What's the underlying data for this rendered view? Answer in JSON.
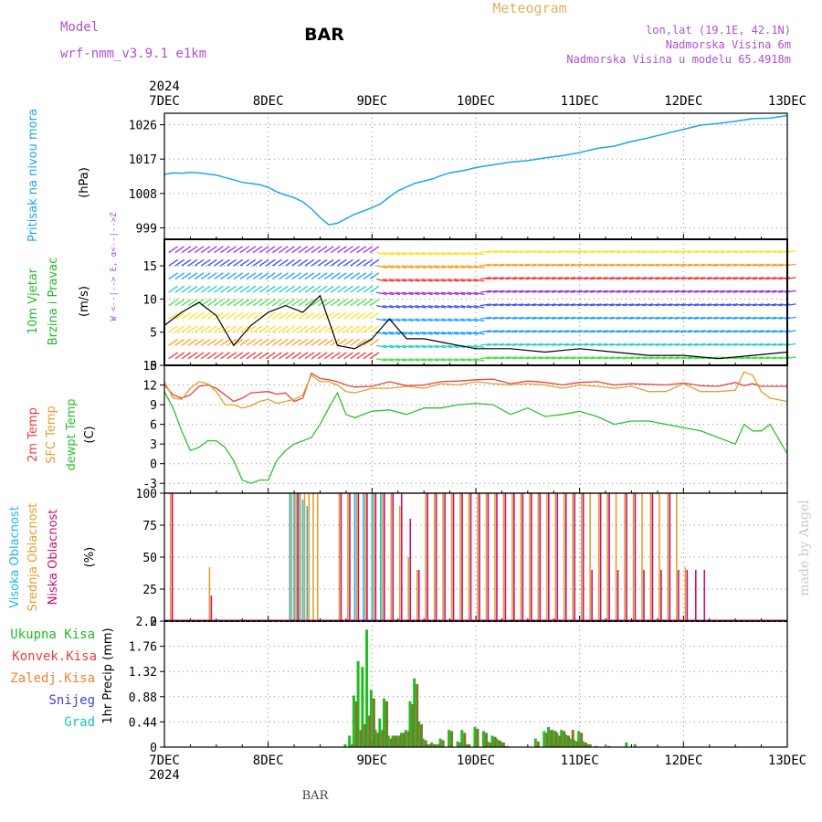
{
  "header": {
    "model_label": "Model",
    "model_name": "wrf-nmm_v3.9.1 e1km",
    "station": "BAR",
    "meteogram": "Meteogram",
    "lonlat": "lon,lat (19.1E, 42.1N)",
    "elevation": "Nadmorska Visina 6m",
    "model_elevation": "Nadmorska Visina u modelu 65.4918m"
  },
  "footer": {
    "station": "BAR",
    "credit": "made by Angel"
  },
  "colors": {
    "pressure": "#1fa6e6",
    "wind_label": "#22bb22",
    "wind_axis": "#a050e0",
    "temp2m": "#e84040",
    "sfc_temp": "#e0a030",
    "dewpt": "#30c030",
    "high_cloud": "#1fb8e8",
    "mid_cloud": "#e0a030",
    "low_cloud": "#c8107a",
    "total_precip": "#22bb22",
    "conv_precip": "#e84040",
    "frozen_precip": "#f08030",
    "snow": "#4040e0",
    "graupel": "#20c0c0",
    "header": "#b050d0",
    "meteogram": "#e0b060"
  },
  "x_axis": {
    "year": "2024",
    "ticks": [
      "7DEC",
      "8DEC",
      "9DEC",
      "10DEC",
      "11DEC",
      "12DEC",
      "13DEC"
    ],
    "range_hours": [
      0,
      144
    ]
  },
  "chart_data": [
    {
      "type": "line",
      "panel": "pressure",
      "ylabel_left": "Pritisak na nivou mora",
      "ylabel_unit": "(hPa)",
      "ylim": [
        996,
        1029
      ],
      "yticks": [
        "999",
        "1008",
        "1017",
        "1026"
      ],
      "grid": true,
      "x_hours": [
        0,
        2,
        4,
        6,
        8,
        10,
        12,
        14,
        16,
        18,
        20,
        22,
        24,
        26,
        28,
        30,
        32,
        34,
        36,
        38,
        40,
        42,
        44,
        46,
        48,
        50,
        52,
        54,
        56,
        58,
        60,
        62,
        64,
        66,
        68,
        70,
        72,
        76,
        80,
        84,
        88,
        92,
        96,
        100,
        104,
        108,
        112,
        116,
        120,
        124,
        128,
        132,
        136,
        140,
        144
      ],
      "values": [
        1013.0,
        1013.4,
        1013.3,
        1013.5,
        1013.4,
        1013.1,
        1012.8,
        1012.2,
        1011.6,
        1010.9,
        1010.6,
        1010.3,
        1009.6,
        1008.4,
        1007.6,
        1006.9,
        1005.8,
        1004.0,
        1001.7,
        999.8,
        1000.2,
        1001.4,
        1002.6,
        1003.4,
        1004.3,
        1005.3,
        1007.1,
        1008.7,
        1009.7,
        1010.7,
        1011.2,
        1011.8,
        1012.7,
        1013.4,
        1013.8,
        1014.2,
        1014.8,
        1015.5,
        1016.2,
        1016.6,
        1017.3,
        1017.9,
        1018.7,
        1019.8,
        1020.4,
        1021.6,
        1022.6,
        1023.7,
        1024.8,
        1025.9,
        1026.3,
        1026.9,
        1027.6,
        1027.7,
        1028.4
      ]
    },
    {
      "type": "scatter",
      "panel": "wind",
      "ylabel_left_1": "10m Vjetar",
      "ylabel_left_2": "Brzina i Pravac",
      "ylabel_unit": "(m/s)",
      "direction_axis": "W <--|--> E, α<--|-->Z",
      "ylim": [
        0,
        19
      ],
      "yticks": [
        "0",
        "5",
        "10",
        "15"
      ],
      "grid": true,
      "series": [
        {
          "x_hours": [
            0,
            4,
            8,
            12,
            16,
            20,
            24,
            28,
            32,
            36,
            40,
            44,
            48,
            52,
            56,
            60,
            64,
            68,
            72,
            80,
            88,
            96,
            104,
            112,
            120,
            128,
            136,
            144
          ],
          "values": [
            6.0,
            8.0,
            9.5,
            7.5,
            3.0,
            6.0,
            8.0,
            9.0,
            8.0,
            10.5,
            3.0,
            2.5,
            4.0,
            7.0,
            4.0,
            4.0,
            3.5,
            3.0,
            2.5,
            2.5,
            2.0,
            2.5,
            2.0,
            1.5,
            1.5,
            1.0,
            1.5,
            2.0
          ]
        }
      ]
    },
    {
      "type": "line",
      "panel": "temperature",
      "ylabel_left_1": "2m Temp",
      "ylabel_left_2": "SFC Temp",
      "ylabel_left_3": "dewpt Temp",
      "ylabel_unit": "(C)",
      "ylim": [
        -4.5,
        15
      ],
      "yticks": [
        "-3",
        "0",
        "3",
        "6",
        "9",
        "12",
        "15"
      ],
      "grid": true,
      "x_hours": [
        0,
        2,
        4,
        6,
        8,
        10,
        12,
        14,
        16,
        18,
        20,
        22,
        24,
        26,
        28,
        30,
        32,
        34,
        36,
        38,
        40,
        42,
        44,
        48,
        52,
        56,
        60,
        64,
        68,
        72,
        76,
        80,
        84,
        88,
        92,
        96,
        100,
        104,
        108,
        112,
        116,
        120,
        124,
        128,
        132,
        134,
        136,
        138,
        140,
        144
      ],
      "series": [
        {
          "name": "2m Temp",
          "values": [
            12.0,
            10.5,
            10.0,
            10.5,
            11.8,
            12.0,
            11.5,
            10.5,
            9.5,
            10.0,
            10.8,
            10.9,
            11.0,
            10.6,
            10.8,
            9.5,
            10.0,
            13.8,
            13.0,
            12.8,
            12.5,
            12.0,
            11.7,
            11.8,
            12.5,
            11.9,
            12.0,
            12.5,
            12.6,
            12.8,
            12.9,
            12.2,
            12.6,
            12.4,
            12.0,
            12.4,
            12.5,
            12.0,
            12.2,
            12.1,
            12.0,
            12.3,
            11.9,
            11.8,
            12.4,
            11.9,
            12.2,
            11.8,
            11.8,
            11.8
          ]
        },
        {
          "name": "SFC Temp",
          "values": [
            12.5,
            10.0,
            9.8,
            11.5,
            12.5,
            12.2,
            11.0,
            9.0,
            9.0,
            8.5,
            8.8,
            9.5,
            9.8,
            9.2,
            9.5,
            9.8,
            10.5,
            13.5,
            12.5,
            12.5,
            12.0,
            11.0,
            10.8,
            11.5,
            11.5,
            11.8,
            11.5,
            12.2,
            12.0,
            12.5,
            12.2,
            12.0,
            12.2,
            12.0,
            11.5,
            12.0,
            11.8,
            11.5,
            11.8,
            11.0,
            11.0,
            12.2,
            11.0,
            11.0,
            11.2,
            14.0,
            13.5,
            11.0,
            10.0,
            9.5
          ]
        },
        {
          "name": "dewpt Temp",
          "values": [
            11.0,
            8.5,
            5.0,
            2.0,
            2.5,
            3.5,
            3.5,
            2.5,
            0.5,
            -2.5,
            -3.0,
            -2.5,
            -2.5,
            0.5,
            2.0,
            3.0,
            3.5,
            4.0,
            6.0,
            8.5,
            10.8,
            7.5,
            7.0,
            8.0,
            8.2,
            7.5,
            8.5,
            8.5,
            9.0,
            9.2,
            9.0,
            7.5,
            8.5,
            7.2,
            7.5,
            8.0,
            7.2,
            6.0,
            6.5,
            6.5,
            6.0,
            5.5,
            5.0,
            4.0,
            3.0,
            6.0,
            5.0,
            5.0,
            6.0,
            1.5
          ]
        }
      ]
    },
    {
      "type": "bar",
      "panel": "cloud",
      "ylabel_left_1": "Visoka Oblacnost",
      "ylabel_left_2": "Srednja Oblacnost",
      "ylabel_left_3": "Niska Oblacnost",
      "ylabel_unit": "(%)",
      "ylim": [
        0,
        100
      ],
      "yticks": [
        "0",
        "25",
        "50",
        "75",
        "100"
      ],
      "grid": true,
      "x_hours": [
        1,
        10,
        29,
        30,
        31,
        32,
        33,
        34,
        35,
        40,
        42,
        44,
        46,
        48,
        50,
        52,
        54,
        56,
        58,
        60,
        62,
        64,
        66,
        68,
        70,
        72,
        74,
        76,
        78,
        80,
        82,
        84,
        86,
        88,
        90,
        92,
        94,
        96,
        98,
        100,
        102,
        104,
        106,
        108,
        110,
        112,
        114,
        116,
        118,
        120,
        122,
        124
      ],
      "series": [
        {
          "name": "Visoka Oblacnost",
          "values": [
            0,
            0,
            100,
            100,
            100,
            95,
            90,
            0,
            0,
            0,
            0,
            100,
            100,
            100,
            100,
            0,
            0,
            0,
            0,
            0,
            0,
            0,
            0,
            0,
            0,
            0,
            0,
            0,
            0,
            0,
            0,
            0,
            0,
            0,
            0,
            0,
            0,
            0,
            0,
            0,
            0,
            0,
            0,
            0,
            0,
            0,
            0,
            0,
            0,
            0,
            0,
            0
          ]
        },
        {
          "name": "Srednja Oblacnost",
          "values": [
            100,
            42,
            100,
            100,
            100,
            100,
            100,
            100,
            100,
            100,
            100,
            100,
            100,
            100,
            100,
            100,
            90,
            50,
            40,
            100,
            100,
            100,
            100,
            100,
            100,
            100,
            100,
            100,
            100,
            100,
            100,
            100,
            100,
            100,
            100,
            100,
            100,
            100,
            100,
            100,
            100,
            100,
            100,
            100,
            100,
            100,
            100,
            100,
            100,
            42,
            0,
            0
          ]
        },
        {
          "name": "Niska Oblacnost",
          "values": [
            100,
            20,
            0,
            100,
            0,
            0,
            0,
            0,
            0,
            100,
            100,
            100,
            100,
            100,
            100,
            100,
            100,
            80,
            40,
            100,
            100,
            100,
            100,
            100,
            100,
            100,
            100,
            100,
            100,
            100,
            100,
            100,
            100,
            100,
            100,
            100,
            100,
            100,
            40,
            100,
            100,
            40,
            100,
            100,
            40,
            100,
            40,
            100,
            40,
            40,
            40,
            40
          ]
        }
      ]
    },
    {
      "type": "bar",
      "panel": "precipitation",
      "ylabel_left": "1hr Precip",
      "ylabel_unit": "(mm)",
      "legend": [
        "Ukupna Kisa",
        "Konvek.Kisa",
        "Zaledj.Kisa",
        "Snijeg",
        "Grad"
      ],
      "ylim": [
        0,
        2.2
      ],
      "yticks": [
        "0",
        "0.44",
        "0.88",
        "1.32",
        "1.76",
        "2.2"
      ],
      "grid": true,
      "x_hours": [
        42,
        43,
        44,
        45,
        46,
        47,
        48,
        49,
        50,
        51,
        52,
        53,
        54,
        55,
        56,
        57,
        58,
        59,
        60,
        61,
        62,
        63,
        64,
        66,
        68,
        69,
        70,
        72,
        74,
        75,
        76,
        77,
        78,
        79,
        86,
        88,
        89,
        90,
        91,
        92,
        93,
        94,
        95,
        96,
        97,
        98,
        100,
        103,
        107,
        109
      ],
      "series": [
        {
          "name": "Ukupna Kisa",
          "values": [
            0.05,
            0.2,
            0.9,
            1.5,
            1.4,
            2.05,
            1.0,
            0.3,
            0.5,
            0.85,
            0.2,
            0.2,
            0.2,
            0.25,
            0.3,
            0.8,
            1.2,
            0.45,
            0.15,
            0.05,
            0.08,
            0.05,
            0.15,
            0.3,
            0.1,
            0.3,
            0.05,
            0.35,
            0.28,
            0.1,
            0.2,
            0.15,
            0.1,
            0.02,
            0.15,
            0.28,
            0.35,
            0.3,
            0.25,
            0.3,
            0.22,
            0.15,
            0.12,
            0.28,
            0.1,
            0.05,
            0.02,
            0.02,
            0.08,
            0.05
          ]
        },
        {
          "name": "Konvek.Kisa",
          "values": [
            0.0,
            0.05,
            0.8,
            0.3,
            0.4,
            0.55,
            0.85,
            0.25,
            0.3,
            0.8,
            0.15,
            0.2,
            0.2,
            0.25,
            0.28,
            0.75,
            1.1,
            0.4,
            0.12,
            0.05,
            0.05,
            0.05,
            0.12,
            0.28,
            0.08,
            0.25,
            0.05,
            0.32,
            0.25,
            0.08,
            0.18,
            0.12,
            0.08,
            0.02,
            0.1,
            0.25,
            0.3,
            0.28,
            0.2,
            0.28,
            0.2,
            0.3,
            0.1,
            0.25,
            0.08,
            0.05,
            0.0,
            0.0,
            0.0,
            0.0
          ]
        }
      ]
    }
  ]
}
